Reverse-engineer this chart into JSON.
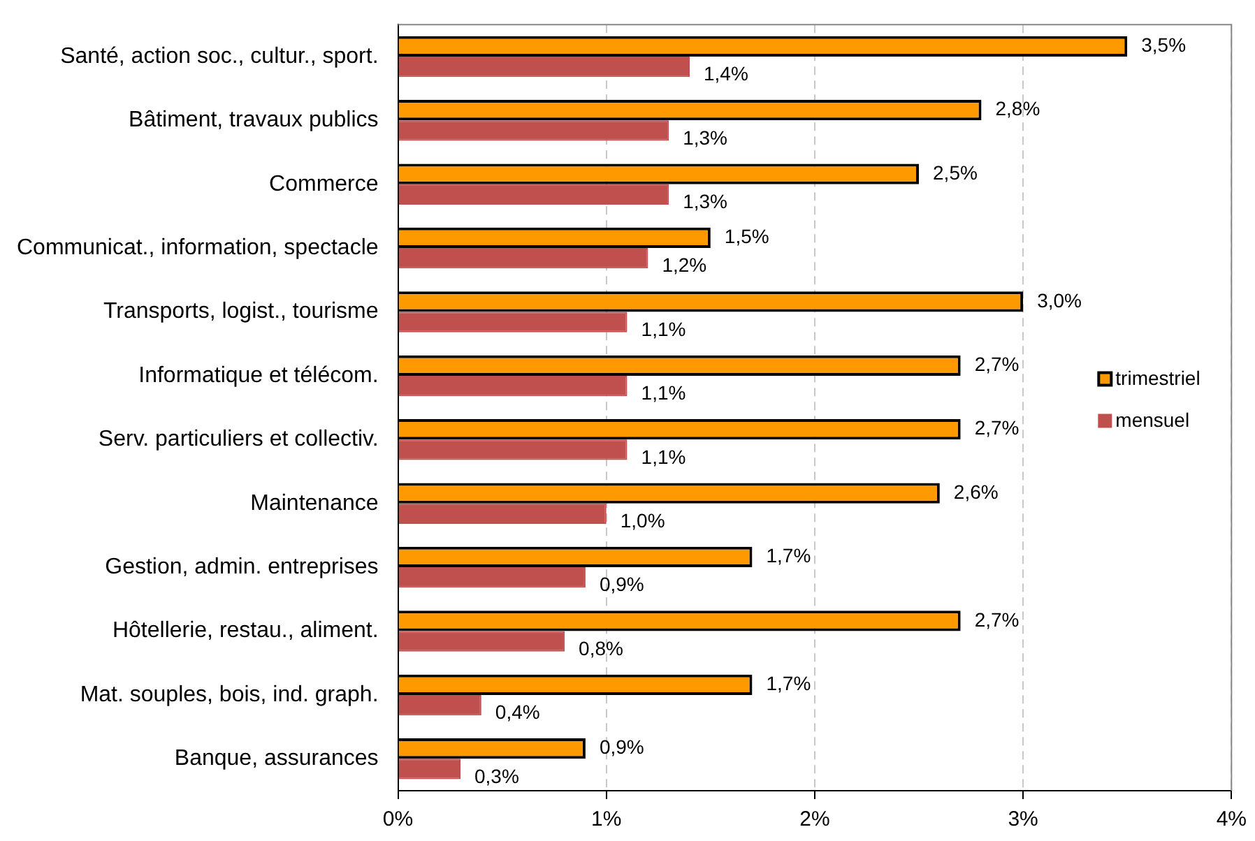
{
  "chart_data": {
    "type": "bar",
    "orientation": "horizontal",
    "categories": [
      "Santé, action soc., cultur., sport.",
      "Bâtiment, travaux publics",
      "Commerce",
      "Communicat., information, spectacle",
      "Transports, logist., tourisme",
      "Informatique et télécom.",
      "Serv. particuliers et collectiv.",
      "Maintenance",
      "Gestion, admin. entreprises",
      "Hôtellerie, restau., aliment.",
      "Mat. souples, bois, ind. graph.",
      "Banque, assurances"
    ],
    "series": [
      {
        "name": "trimestriel",
        "color": "#ff9900",
        "values": [
          3.5,
          2.8,
          2.5,
          1.5,
          3.0,
          2.7,
          2.7,
          2.6,
          1.7,
          2.7,
          1.7,
          0.9
        ],
        "value_labels": [
          "3,5%",
          "2,8%",
          "2,5%",
          "1,5%",
          "3,0%",
          "2,7%",
          "2,7%",
          "2,6%",
          "1,7%",
          "2,7%",
          "1,7%",
          "0,9%"
        ]
      },
      {
        "name": "mensuel",
        "color": "#c0504d",
        "values": [
          1.4,
          1.3,
          1.3,
          1.2,
          1.1,
          1.1,
          1.1,
          1.0,
          0.9,
          0.8,
          0.4,
          0.3
        ],
        "value_labels": [
          "1,4%",
          "1,3%",
          "1,3%",
          "1,2%",
          "1,1%",
          "1,1%",
          "1,1%",
          "1,0%",
          "0,9%",
          "0,8%",
          "0,4%",
          "0,3%"
        ]
      }
    ],
    "xlim": [
      0,
      4
    ],
    "xticks": [
      {
        "value": 0,
        "label": "0%"
      },
      {
        "value": 1,
        "label": "1%"
      },
      {
        "value": 2,
        "label": "2%"
      },
      {
        "value": 3,
        "label": "3%"
      },
      {
        "value": 4,
        "label": "4%"
      }
    ],
    "grid": "x",
    "legend": "right"
  }
}
